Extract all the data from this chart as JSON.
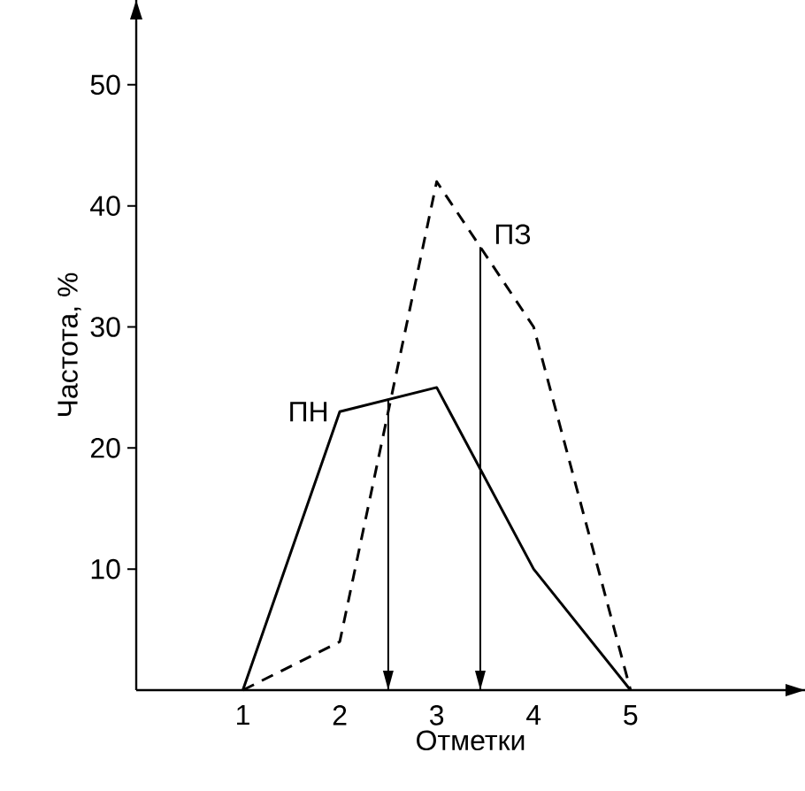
{
  "chart_data": {
    "type": "line",
    "xlabel": "Отметки",
    "ylabel": "Частота, %",
    "x": [
      1,
      2,
      3,
      4,
      5
    ],
    "xlim": [
      -0.1,
      6.8
    ],
    "ylim": [
      0,
      57
    ],
    "xticks": [
      1,
      2,
      3,
      4,
      5
    ],
    "yticks": [
      10,
      20,
      30,
      40,
      50
    ],
    "legend": false,
    "grid": false,
    "marker": "none",
    "series": [
      {
        "name": "ПН",
        "color": "#000000",
        "line_style": "solid",
        "values": [
          0,
          23,
          25,
          10,
          0
        ]
      },
      {
        "name": "ПЗ",
        "color": "#000000",
        "line_style": "dashed",
        "values": [
          0,
          4,
          42,
          30,
          0
        ]
      }
    ],
    "ref_lines": [
      {
        "axis": "x",
        "value": 2.5,
        "color": "#000000",
        "line_style": "solid"
      },
      {
        "axis": "x",
        "value": 3.45,
        "color": "#000000",
        "line_style": "solid"
      }
    ]
  }
}
